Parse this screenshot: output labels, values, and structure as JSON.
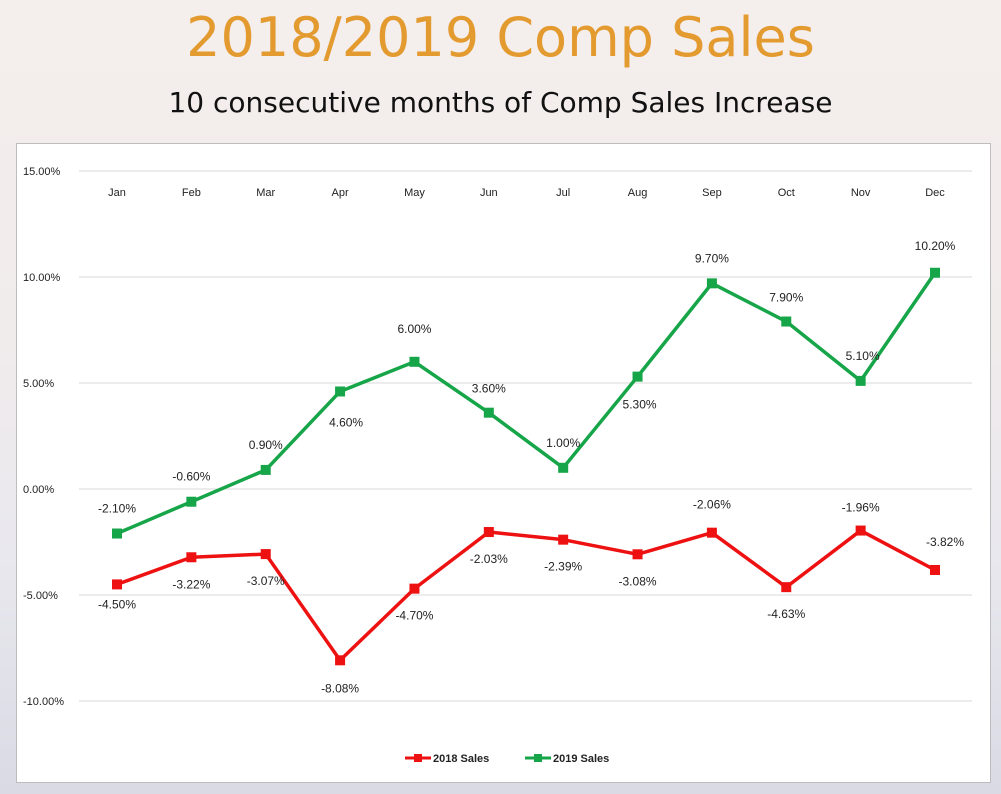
{
  "slide": {
    "title": "2018/2019 Comp Sales",
    "subtitle": "10 consecutive months of Comp Sales Increase"
  },
  "chart_data": {
    "type": "line",
    "categories": [
      "Jan",
      "Feb",
      "Mar",
      "Apr",
      "May",
      "Jun",
      "Jul",
      "Aug",
      "Sep",
      "Oct",
      "Nov",
      "Dec"
    ],
    "ylim": [
      -10,
      15
    ],
    "yticks": [
      15,
      10,
      5,
      0,
      -5,
      -10
    ],
    "ytick_labels": [
      "15.00%",
      "10.00%",
      "5.00%",
      "0.00%",
      "-5.00%",
      "-10.00%"
    ],
    "grid": true,
    "legend_position": "bottom",
    "series": [
      {
        "name": "2018 Sales",
        "color": "#ee1111",
        "values": [
          -4.5,
          -3.22,
          -3.07,
          -8.08,
          -4.7,
          -2.03,
          -2.39,
          -3.08,
          -2.06,
          -4.63,
          -1.96,
          -3.82
        ],
        "labels": [
          "-4.50%",
          "-3.22%",
          "-3.07%",
          "-8.08%",
          "-4.70%",
          "-2.03%",
          "-2.39%",
          "-3.08%",
          "-2.06%",
          "-4.63%",
          "-1.96%",
          "-3.82%"
        ]
      },
      {
        "name": "2019 Sales",
        "color": "#16a548",
        "values": [
          -2.1,
          -0.6,
          0.9,
          4.6,
          6.0,
          3.6,
          1.0,
          5.3,
          9.7,
          7.9,
          5.1,
          10.2
        ],
        "labels": [
          "-2.10%",
          "-0.60%",
          "0.90%",
          "4.60%",
          "6.00%",
          "3.60%",
          "1.00%",
          "5.30%",
          "9.70%",
          "7.90%",
          "5.10%",
          "10.20%"
        ]
      }
    ]
  }
}
